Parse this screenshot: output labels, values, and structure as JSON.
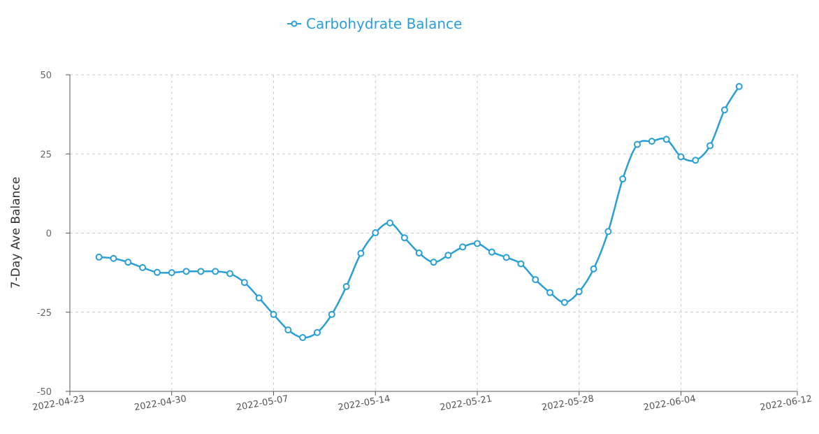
{
  "chart_data": {
    "type": "line",
    "xlabel": "",
    "ylabel": "7-Day Ave Balance",
    "ylim": [
      -50,
      50
    ],
    "xlim": [
      "2022-04-23",
      "2022-06-12"
    ],
    "x_ticks": [
      "2022-04-23",
      "2022-04-30",
      "2022-05-07",
      "2022-05-14",
      "2022-05-21",
      "2022-05-28",
      "2022-06-04",
      "2022-06-12"
    ],
    "y_ticks": [
      50,
      25,
      0,
      -25,
      -50
    ],
    "grid": true,
    "legend_position": "top-center",
    "series": [
      {
        "name": "Carbohydrate Balance",
        "color": "#2a9fd6",
        "marker": "open-circle",
        "x": [
          "2022-04-25",
          "2022-04-26",
          "2022-04-27",
          "2022-04-28",
          "2022-04-29",
          "2022-04-30",
          "2022-05-01",
          "2022-05-02",
          "2022-05-03",
          "2022-05-04",
          "2022-05-05",
          "2022-05-06",
          "2022-05-07",
          "2022-05-08",
          "2022-05-09",
          "2022-05-10",
          "2022-05-11",
          "2022-05-12",
          "2022-05-13",
          "2022-05-14",
          "2022-05-15",
          "2022-05-16",
          "2022-05-17",
          "2022-05-18",
          "2022-05-19",
          "2022-05-20",
          "2022-05-21",
          "2022-05-22",
          "2022-05-23",
          "2022-05-24",
          "2022-05-25",
          "2022-05-26",
          "2022-05-27",
          "2022-05-28",
          "2022-05-29",
          "2022-05-30",
          "2022-05-31",
          "2022-06-01",
          "2022-06-02",
          "2022-06-03",
          "2022-06-04",
          "2022-06-05",
          "2022-06-06",
          "2022-06-07",
          "2022-06-08"
        ],
        "values": [
          -7.6,
          -8.0,
          -9.2,
          -10.9,
          -12.4,
          -12.5,
          -12.1,
          -12.1,
          -12.1,
          -12.8,
          -15.6,
          -20.5,
          -25.7,
          -30.6,
          -33.0,
          -31.4,
          -25.7,
          -16.9,
          -6.4,
          0.1,
          3.2,
          -1.5,
          -6.3,
          -9.2,
          -7.0,
          -4.4,
          -3.3,
          -6.0,
          -7.7,
          -9.7,
          -14.7,
          -18.8,
          -21.9,
          -18.5,
          -11.3,
          0.5,
          17.1,
          28.0,
          29.0,
          29.6,
          24.1,
          23.0,
          27.6,
          38.9,
          46.3
        ]
      }
    ]
  }
}
